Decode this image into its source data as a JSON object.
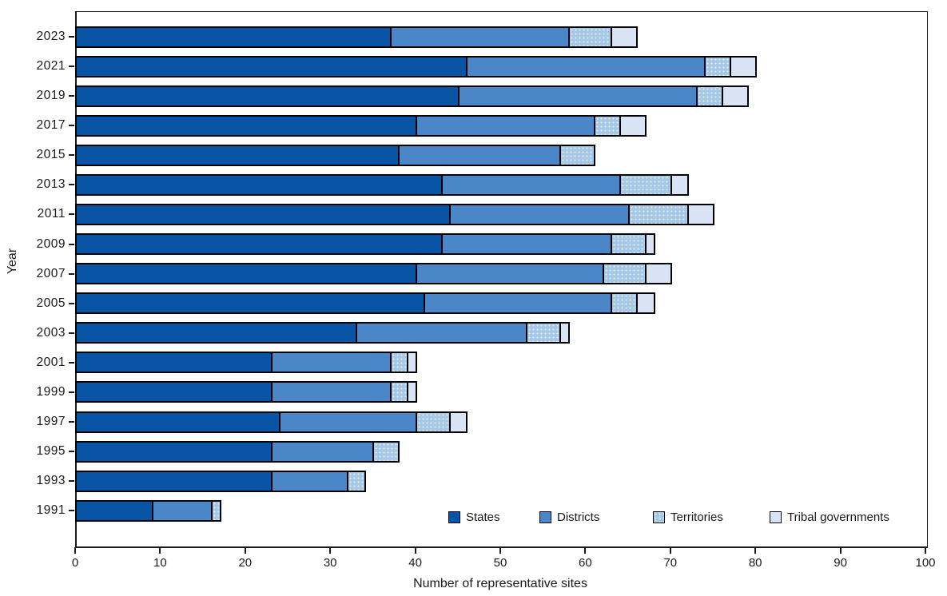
{
  "chart_data": {
    "type": "bar",
    "orientation": "horizontal",
    "stacked": true,
    "title": "",
    "xlabel": "Number of representative sites",
    "ylabel": "Year",
    "xlim": [
      0,
      100
    ],
    "xticks": [
      0,
      10,
      20,
      30,
      40,
      50,
      60,
      70,
      80,
      90,
      100
    ],
    "grid": false,
    "categories": [
      "2023",
      "2021",
      "2019",
      "2017",
      "2015",
      "2013",
      "2011",
      "2009",
      "2007",
      "2005",
      "2003",
      "2001",
      "1999",
      "1997",
      "1995",
      "1993",
      "1991"
    ],
    "series": [
      {
        "name": "States",
        "color": "#0a54a6",
        "pattern": "solid",
        "values": [
          37,
          46,
          45,
          40,
          38,
          43,
          44,
          43,
          40,
          41,
          33,
          23,
          23,
          24,
          23,
          23,
          9
        ]
      },
      {
        "name": "Districts",
        "color": "#4a86c8",
        "pattern": "solid",
        "values": [
          21,
          28,
          28,
          21,
          19,
          21,
          21,
          20,
          22,
          22,
          20,
          14,
          14,
          16,
          12,
          9,
          7
        ]
      },
      {
        "name": "Territories",
        "color": "#a6c8e8",
        "pattern": "dots",
        "values": [
          5,
          3,
          3,
          3,
          4,
          6,
          7,
          4,
          5,
          3,
          4,
          2,
          2,
          4,
          3,
          2,
          1
        ]
      },
      {
        "name": "Tribal governments",
        "color": "#d8e3f4",
        "pattern": "solid",
        "values": [
          3,
          3,
          3,
          3,
          0,
          2,
          3,
          1,
          3,
          2,
          1,
          1,
          1,
          2,
          0,
          0,
          0
        ]
      }
    ],
    "legend": {
      "position": "inside-bottom",
      "labels": [
        "States",
        "Districts",
        "Territories",
        "Tribal governments"
      ]
    }
  }
}
